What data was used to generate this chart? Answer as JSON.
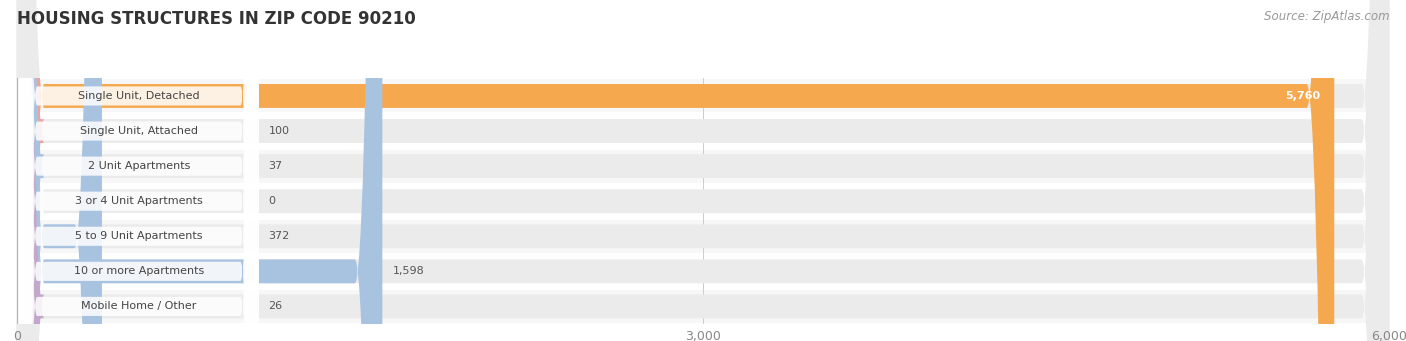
{
  "title": "HOUSING STRUCTURES IN ZIP CODE 90210",
  "source": "Source: ZipAtlas.com",
  "categories": [
    "Single Unit, Detached",
    "Single Unit, Attached",
    "2 Unit Apartments",
    "3 or 4 Unit Apartments",
    "5 to 9 Unit Apartments",
    "10 or more Apartments",
    "Mobile Home / Other"
  ],
  "values": [
    5760,
    100,
    37,
    0,
    372,
    1598,
    26
  ],
  "bar_colors": [
    "#F5A84D",
    "#F2A0A0",
    "#A8C3E0",
    "#A8C3E0",
    "#A8C3E0",
    "#A8C3E0",
    "#C4A8CC"
  ],
  "bar_bg_color": "#EBEBEB",
  "row_bg_even": "#F7F7F7",
  "row_bg_odd": "#FFFFFF",
  "xlim": [
    0,
    6000
  ],
  "xticks": [
    0,
    3000,
    6000
  ],
  "xticklabels": [
    "0",
    "3,000",
    "6,000"
  ],
  "value_labels": [
    "5,760",
    "100",
    "37",
    "0",
    "372",
    "1,598",
    "26"
  ],
  "title_fontsize": 12,
  "source_fontsize": 8.5,
  "label_fontsize": 8,
  "tick_fontsize": 9,
  "bg_color": "#FFFFFF"
}
